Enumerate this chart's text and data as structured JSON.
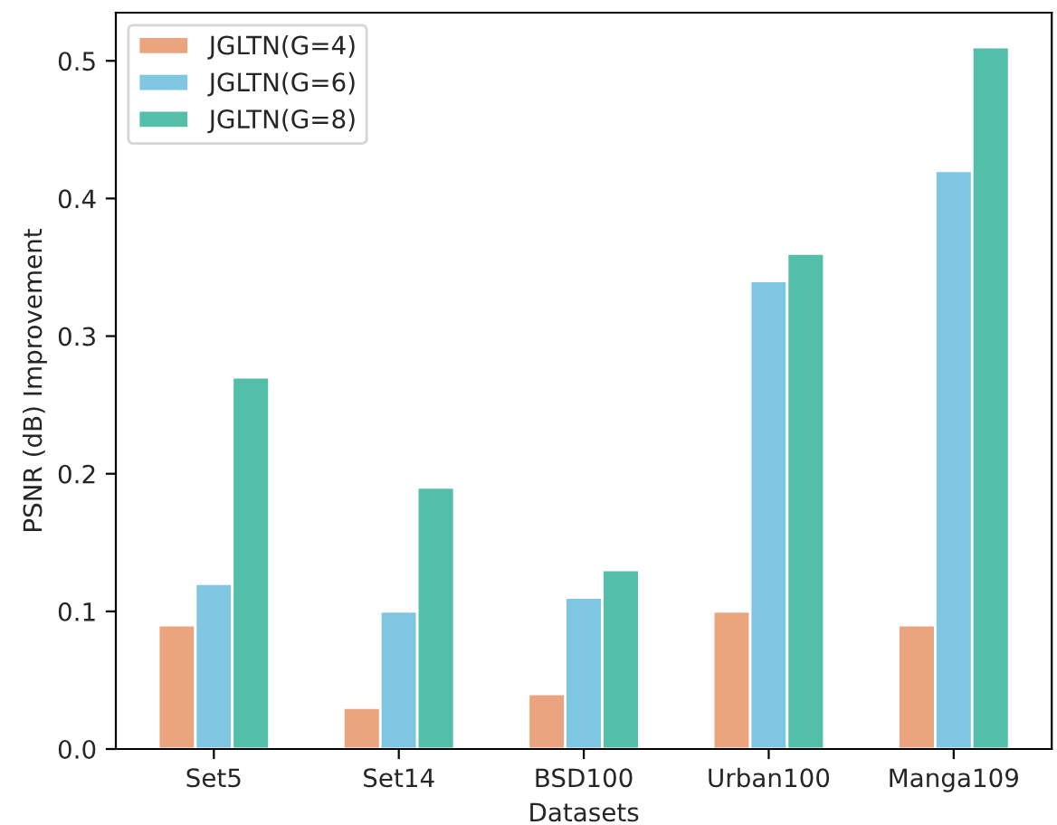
{
  "chart_data": {
    "type": "bar",
    "xlabel": "Datasets",
    "ylabel": "PSNR (dB) Improvement",
    "categories": [
      "Set5",
      "Set14",
      "BSD100",
      "Urban100",
      "Manga109"
    ],
    "series": [
      {
        "name": "JGLTN(G=4)",
        "color": "#eba57e",
        "values": [
          0.09,
          0.03,
          0.04,
          0.1,
          0.09
        ]
      },
      {
        "name": "JGLTN(G=6)",
        "color": "#7ec6e2",
        "values": [
          0.12,
          0.1,
          0.11,
          0.34,
          0.42
        ]
      },
      {
        "name": "JGLTN(G=8)",
        "color": "#53bfa9",
        "values": [
          0.27,
          0.19,
          0.13,
          0.36,
          0.51
        ]
      }
    ],
    "ylim": [
      0,
      0.535
    ],
    "yticks": [
      {
        "value": 0,
        "label": "0.0"
      },
      0.1,
      0.2,
      0.3,
      0.4,
      0.5
    ],
    "legend": "top left",
    "grid": false
  }
}
